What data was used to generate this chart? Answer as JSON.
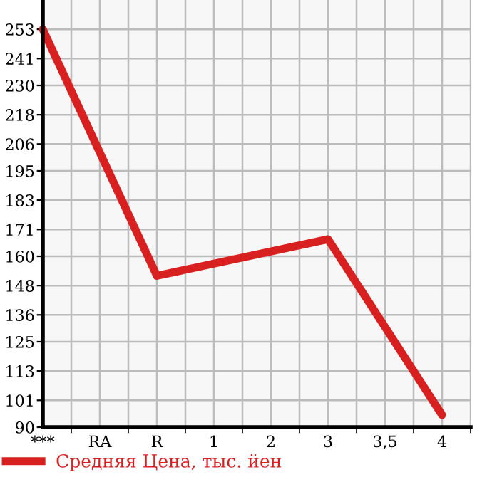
{
  "chart_data": {
    "type": "line",
    "categories": [
      "***",
      "RA",
      "R",
      "1",
      "2",
      "3",
      "3,5",
      "4"
    ],
    "series": [
      {
        "name": "Средняя Цена, тыс. йен",
        "color": "#d82020",
        "values": [
          253,
          null,
          152,
          null,
          null,
          167,
          null,
          95
        ]
      }
    ],
    "ylim": [
      90,
      265
    ],
    "yticks": [
      90,
      101,
      113,
      125,
      136,
      148,
      160,
      171,
      183,
      195,
      206,
      218,
      230,
      241,
      253
    ],
    "grid": true,
    "legend": "bottom",
    "marker": "none",
    "line_style": "solid"
  }
}
